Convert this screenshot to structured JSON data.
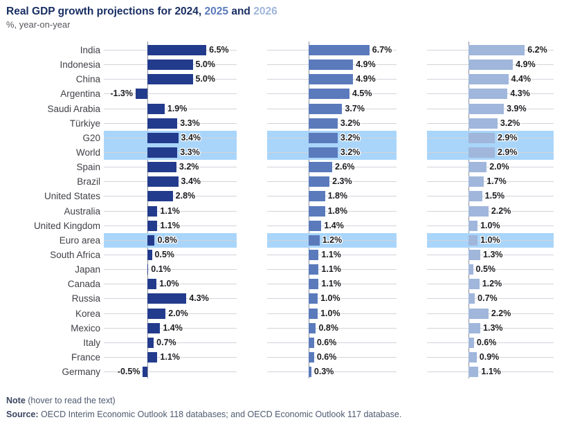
{
  "title": {
    "prefix": "Real GDP growth projections for ",
    "year1": "2024",
    "sep1": ", ",
    "year2": "2025",
    "sep2": " and ",
    "year3": "2026"
  },
  "subtitle": "%, year-on-year",
  "colors": {
    "title_navy": "#182e63",
    "series_2024": "#233b8c",
    "series_2025": "#5a7abc",
    "series_2026": "#a0b6db",
    "highlight_band": "#a9d5fa",
    "gridline": "#d2d4da",
    "axis": "#8c9099"
  },
  "footer": {
    "note_label": "Note",
    "note_text": " (hover to read the text)",
    "source_label": "Source:",
    "source_text": " OECD Interim Economic Outlook 118 databases; and OECD Economic Outlook 117 database."
  },
  "chart_data": {
    "type": "bar",
    "orientation": "horizontal",
    "title": "Real GDP growth projections for 2024, 2025 and 2026",
    "subtitle": "%, year-on-year",
    "xlabel": "",
    "ylabel": "",
    "xlim": [
      -1.5,
      7.0
    ],
    "grid": "per-row leader lines",
    "legend_position": "in-title (colored years)",
    "value_suffix": "%",
    "categories": [
      "India",
      "Indonesia",
      "China",
      "Argentina",
      "Saudi Arabia",
      "Türkiye",
      "G20",
      "World",
      "Spain",
      "Brazil",
      "United States",
      "Australia",
      "United Kingdom",
      "Euro area",
      "South Africa",
      "Japan",
      "Canada",
      "Russia",
      "Korea",
      "Mexico",
      "Italy",
      "France",
      "Germany"
    ],
    "highlighted": [
      "G20",
      "World",
      "Euro area"
    ],
    "series": [
      {
        "name": "2024",
        "color": "#233b8c",
        "values": [
          6.5,
          5.0,
          5.0,
          -1.3,
          1.9,
          3.3,
          3.4,
          3.3,
          3.2,
          3.4,
          2.8,
          1.1,
          1.1,
          0.8,
          0.5,
          0.1,
          1.0,
          4.3,
          2.0,
          1.4,
          0.7,
          1.1,
          -0.5
        ]
      },
      {
        "name": "2025",
        "color": "#5a7abc",
        "values": [
          6.7,
          4.9,
          4.9,
          4.5,
          3.7,
          3.2,
          3.2,
          3.2,
          2.6,
          2.3,
          1.8,
          1.8,
          1.4,
          1.2,
          1.1,
          1.1,
          1.1,
          1.0,
          1.0,
          0.8,
          0.6,
          0.6,
          0.3
        ]
      },
      {
        "name": "2026",
        "color": "#a0b6db",
        "values": [
          6.2,
          4.9,
          4.4,
          4.3,
          3.9,
          3.2,
          2.9,
          2.9,
          2.0,
          1.7,
          1.5,
          2.2,
          1.0,
          1.0,
          1.3,
          0.5,
          1.2,
          0.7,
          2.2,
          1.3,
          0.6,
          0.9,
          1.1
        ]
      }
    ]
  }
}
